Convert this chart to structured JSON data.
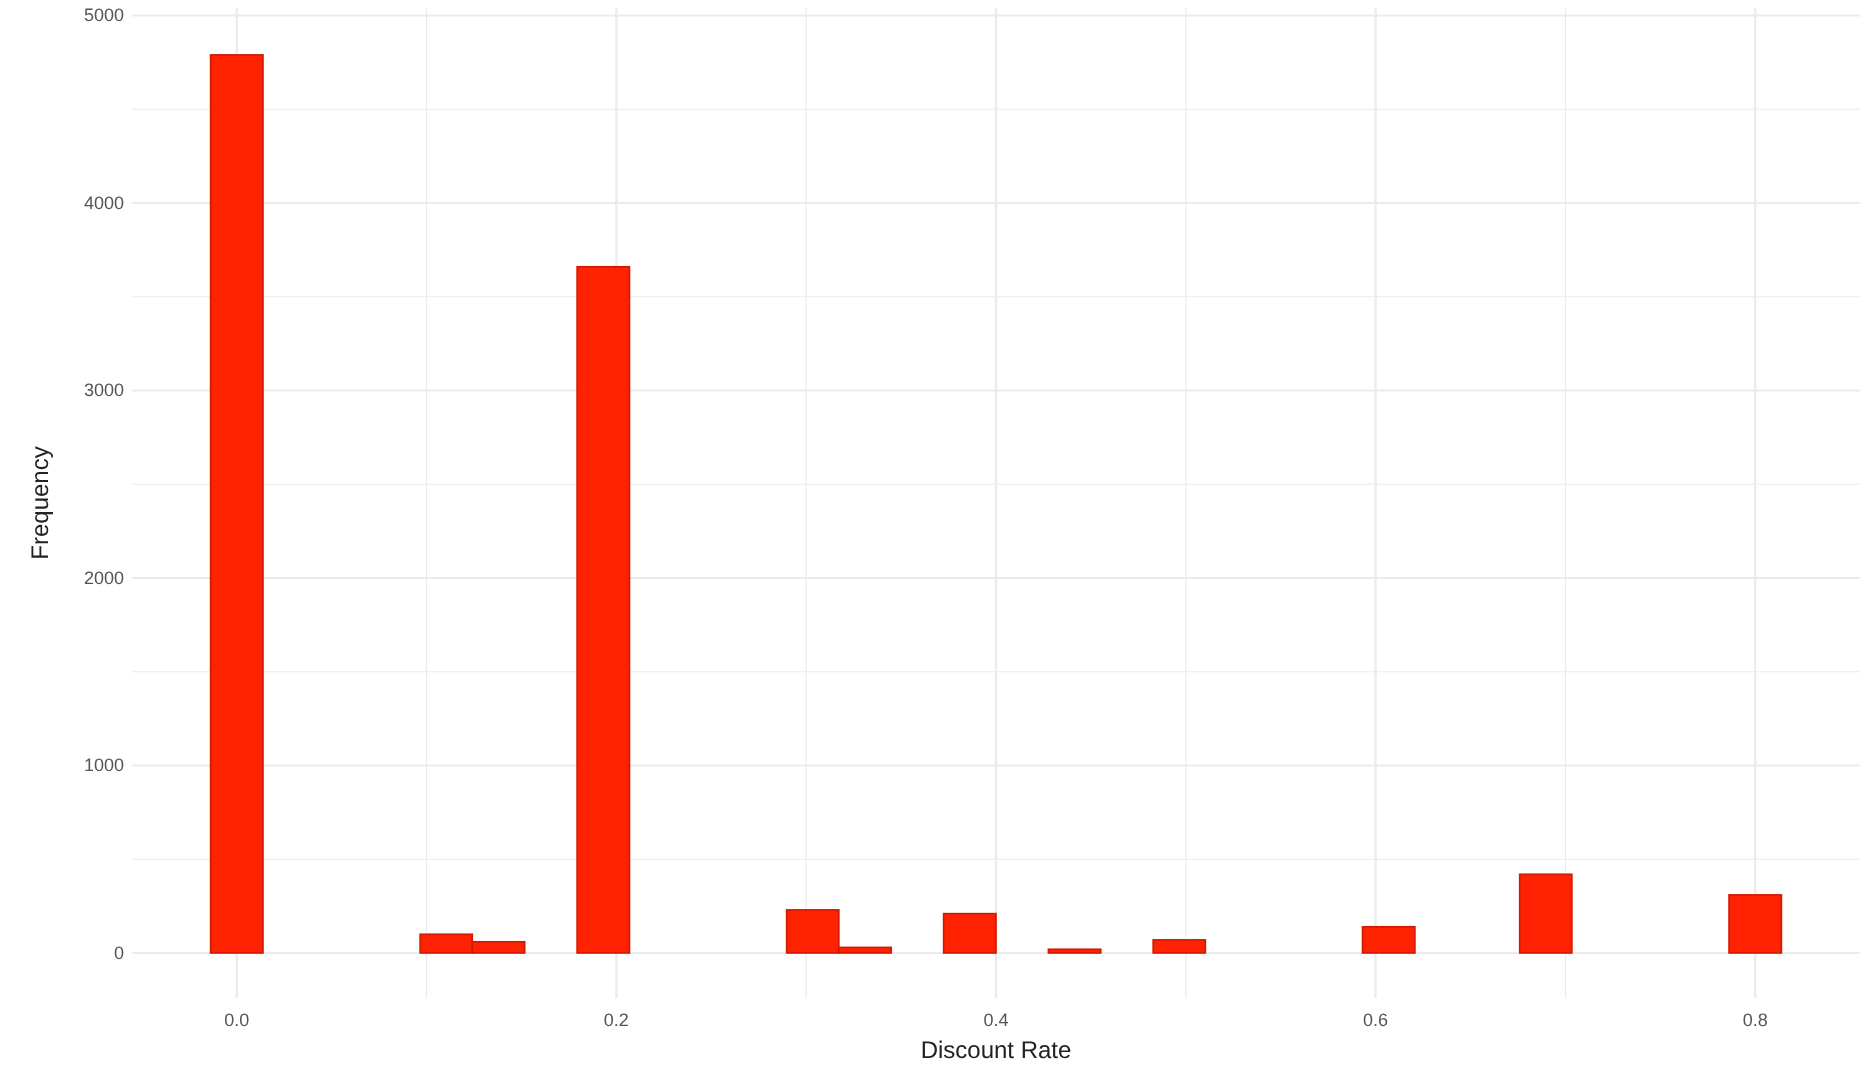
{
  "chart_data": {
    "type": "histogram",
    "xlabel": "Discount Rate",
    "ylabel": "Frequency",
    "color": "#ff2200",
    "bins": [
      -0.0138,
      0.0138,
      0.0414,
      0.069,
      0.0966,
      0.1241,
      0.1517,
      0.1793,
      0.2069,
      0.2345,
      0.2621,
      0.2897,
      0.3172,
      0.3448,
      0.3724,
      0.4,
      0.4276,
      0.4552,
      0.4828,
      0.5103,
      0.5379,
      0.5655,
      0.5931,
      0.6207,
      0.6483,
      0.6759,
      0.7034,
      0.731,
      0.7586,
      0.7862,
      0.8138
    ],
    "values": [
      4790,
      0,
      0,
      0,
      100,
      60,
      0,
      3660,
      0,
      0,
      0,
      230,
      30,
      0,
      210,
      0,
      20,
      0,
      70,
      0,
      0,
      0,
      140,
      0,
      0,
      420,
      0,
      0,
      0,
      310
    ],
    "xlim": [
      -0.0552,
      0.8552
    ],
    "ylim": [
      -240,
      5040
    ],
    "xticks": [
      {
        "value": 0,
        "label": "0.0"
      },
      {
        "value": 0.1,
        "label": null
      },
      {
        "value": 0.2,
        "label": "0.2"
      },
      {
        "value": 0.3,
        "label": null
      },
      {
        "value": 0.4,
        "label": "0.4"
      },
      {
        "value": 0.5,
        "label": null
      },
      {
        "value": 0.6,
        "label": "0.6"
      },
      {
        "value": 0.7,
        "label": null
      },
      {
        "value": 0.8,
        "label": "0.8"
      }
    ],
    "yticks": [
      0,
      {
        "value": 500,
        "label": null
      },
      1000,
      {
        "value": 1500,
        "label": null
      },
      2000,
      {
        "value": 2500,
        "label": null
      },
      3000,
      {
        "value": 3500,
        "label": null
      },
      4000,
      {
        "value": 4500,
        "label": null
      },
      5000
    ],
    "grid": true
  }
}
